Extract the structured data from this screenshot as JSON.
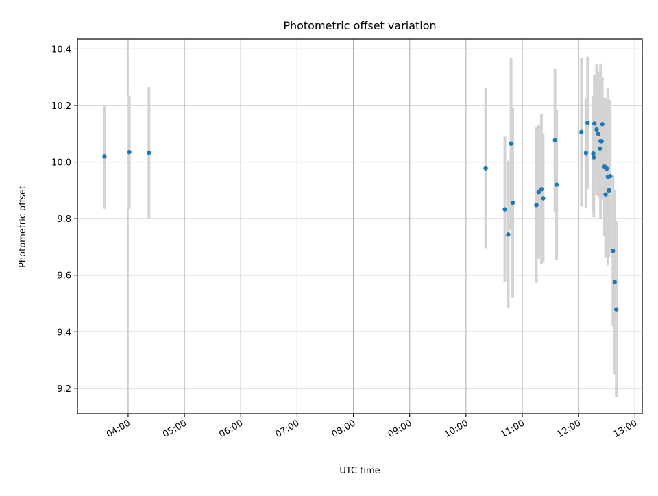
{
  "chart_data": {
    "type": "scatter",
    "title": "Photometric offset variation",
    "xlabel": "UTC time",
    "ylabel": "Photometric offset",
    "x_unit": "UTC hour of day",
    "xlim": [
      3.1,
      13.13
    ],
    "ylim": [
      9.11,
      10.435
    ],
    "x_ticks": [
      {
        "value": 4,
        "label": "04:00"
      },
      {
        "value": 5,
        "label": "05:00"
      },
      {
        "value": 6,
        "label": "06:00"
      },
      {
        "value": 7,
        "label": "07:00"
      },
      {
        "value": 8,
        "label": "08:00"
      },
      {
        "value": 9,
        "label": "09:00"
      },
      {
        "value": 10,
        "label": "10:00"
      },
      {
        "value": 11,
        "label": "11:00"
      },
      {
        "value": 12,
        "label": "12:00"
      },
      {
        "value": 13,
        "label": "13:00"
      }
    ],
    "y_ticks": [
      {
        "value": 9.2,
        "label": "9.2"
      },
      {
        "value": 9.4,
        "label": "9.4"
      },
      {
        "value": 9.6,
        "label": "9.6"
      },
      {
        "value": 9.8,
        "label": "9.8"
      },
      {
        "value": 10.0,
        "label": "10.0"
      },
      {
        "value": 10.2,
        "label": "10.2"
      },
      {
        "value": 10.4,
        "label": "10.4"
      }
    ],
    "grid": true,
    "marker_color": "#1f77b4",
    "errorbar_color": "#d3d3d3",
    "points": [
      {
        "x": 3.58,
        "y": 10.02,
        "lo": 9.835,
        "hi": 10.2
      },
      {
        "x": 4.02,
        "y": 10.035,
        "lo": 9.835,
        "hi": 10.235
      },
      {
        "x": 4.37,
        "y": 10.033,
        "lo": 9.8,
        "hi": 10.265
      },
      {
        "x": 10.35,
        "y": 9.978,
        "lo": 9.695,
        "hi": 10.263
      },
      {
        "x": 10.69,
        "y": 9.833,
        "lo": 9.575,
        "hi": 10.09
      },
      {
        "x": 10.75,
        "y": 9.744,
        "lo": 9.483,
        "hi": 10.005
      },
      {
        "x": 10.8,
        "y": 10.065,
        "lo": 9.76,
        "hi": 10.37
      },
      {
        "x": 10.83,
        "y": 9.856,
        "lo": 9.52,
        "hi": 10.19
      },
      {
        "x": 11.25,
        "y": 9.848,
        "lo": 9.573,
        "hi": 10.123
      },
      {
        "x": 11.29,
        "y": 9.894,
        "lo": 9.658,
        "hi": 10.13
      },
      {
        "x": 11.34,
        "y": 9.904,
        "lo": 9.64,
        "hi": 10.17
      },
      {
        "x": 11.37,
        "y": 9.872,
        "lo": 9.645,
        "hi": 10.1
      },
      {
        "x": 11.58,
        "y": 10.077,
        "lo": 9.825,
        "hi": 10.33
      },
      {
        "x": 11.61,
        "y": 9.92,
        "lo": 9.655,
        "hi": 10.185
      },
      {
        "x": 12.05,
        "y": 10.106,
        "lo": 9.843,
        "hi": 10.368
      },
      {
        "x": 12.13,
        "y": 10.032,
        "lo": 9.838,
        "hi": 10.226
      },
      {
        "x": 12.16,
        "y": 10.139,
        "lo": 9.905,
        "hi": 10.373
      },
      {
        "x": 12.26,
        "y": 10.03,
        "lo": 9.825,
        "hi": 10.235
      },
      {
        "x": 12.27,
        "y": 10.017,
        "lo": 9.805,
        "hi": 10.229
      },
      {
        "x": 12.28,
        "y": 10.136,
        "lo": 9.965,
        "hi": 10.307
      },
      {
        "x": 12.32,
        "y": 10.115,
        "lo": 9.885,
        "hi": 10.345
      },
      {
        "x": 12.35,
        "y": 10.1,
        "lo": 9.88,
        "hi": 10.32
      },
      {
        "x": 12.38,
        "y": 10.048,
        "lo": 9.87,
        "hi": 10.226
      },
      {
        "x": 12.39,
        "y": 10.074,
        "lo": 9.8,
        "hi": 10.348
      },
      {
        "x": 12.41,
        "y": 10.073,
        "lo": 9.87,
        "hi": 10.276
      },
      {
        "x": 12.42,
        "y": 10.134,
        "lo": 9.88,
        "hi": 10.3
      },
      {
        "x": 12.46,
        "y": 9.984,
        "lo": 9.74,
        "hi": 10.228
      },
      {
        "x": 12.48,
        "y": 9.886,
        "lo": 9.66,
        "hi": 10.112
      },
      {
        "x": 12.5,
        "y": 9.977,
        "lo": 9.73,
        "hi": 10.224
      },
      {
        "x": 12.52,
        "y": 9.948,
        "lo": 9.635,
        "hi": 10.261
      },
      {
        "x": 12.54,
        "y": 9.9,
        "lo": 9.665,
        "hi": 10.135
      },
      {
        "x": 12.56,
        "y": 9.95,
        "lo": 9.68,
        "hi": 10.22
      },
      {
        "x": 12.61,
        "y": 9.686,
        "lo": 9.42,
        "hi": 9.952
      },
      {
        "x": 12.64,
        "y": 9.576,
        "lo": 9.25,
        "hi": 9.902
      },
      {
        "x": 12.67,
        "y": 9.479,
        "lo": 9.17,
        "hi": 9.79
      }
    ]
  }
}
